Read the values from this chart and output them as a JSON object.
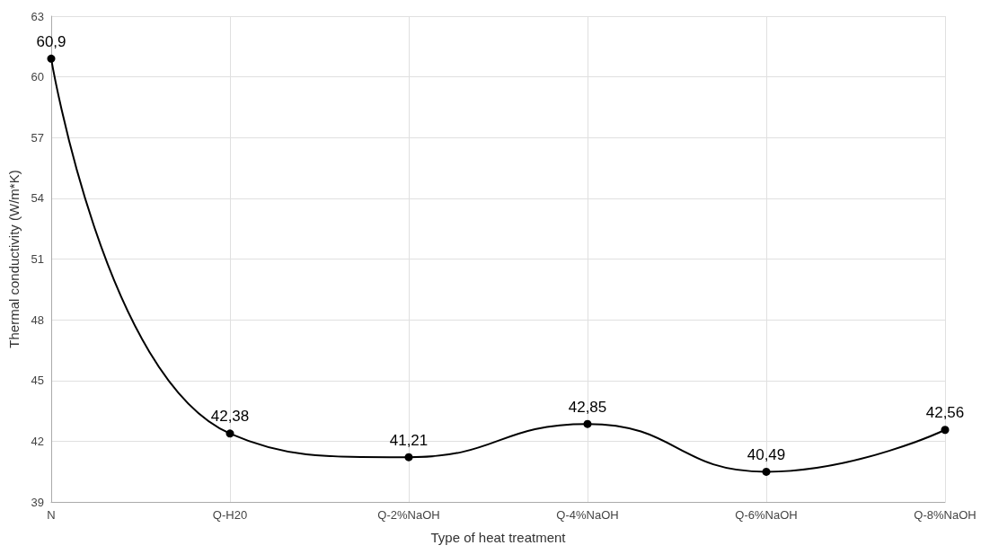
{
  "chart_data": {
    "type": "line",
    "xlabel": "Type of heat treatment",
    "ylabel": "Thermal conductivity (W/m*K)",
    "categories": [
      "N",
      "Q-H20",
      "Q-2%NaOH",
      "Q-4%NaOH",
      "Q-6%NaOH",
      "Q-8%NaOH"
    ],
    "series": [
      {
        "color": "#000000",
        "values": [
          60.9,
          42.38,
          41.21,
          42.85,
          40.49,
          42.56
        ],
        "value_labels": [
          "60,9",
          "42,38",
          "41,21",
          "42,85",
          "40,49",
          "42,56"
        ]
      }
    ],
    "ylim": [
      39,
      63
    ],
    "yticks": [
      39,
      42,
      45,
      48,
      51,
      54,
      57,
      60,
      63
    ],
    "grid": true,
    "marker": "circle",
    "line_style": "solid"
  }
}
